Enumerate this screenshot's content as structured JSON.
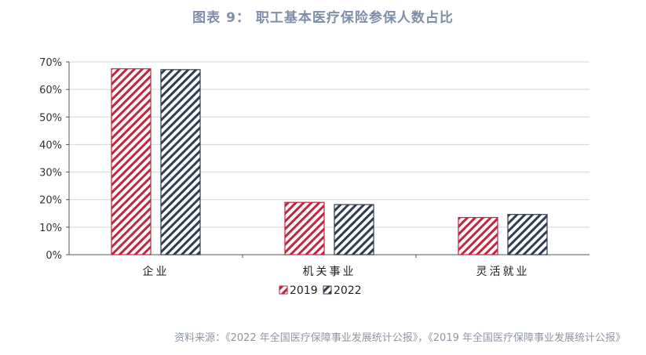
{
  "title": "图表 9：  职工基本医疗保险参保人数占比",
  "source": "资料来源：《2022 年全国医疗保障事业发展统计公报》，《2019 年全国医疗保障事业发展统计公报》",
  "colors": {
    "series_2019": "#c0263e",
    "series_2022": "#2f3d4f"
  },
  "chart_data": {
    "type": "bar",
    "categories": [
      "企业",
      "机关事业",
      "灵活就业"
    ],
    "series": [
      {
        "name": "2019",
        "values": [
          67.5,
          19.0,
          13.5
        ]
      },
      {
        "name": "2022",
        "values": [
          67.2,
          18.2,
          14.6
        ]
      }
    ],
    "ylim": [
      0,
      70
    ],
    "yticks": [
      "0%",
      "10%",
      "20%",
      "30%",
      "40%",
      "50%",
      "60%",
      "70%"
    ],
    "grid": true,
    "legend": "bottom-center"
  }
}
